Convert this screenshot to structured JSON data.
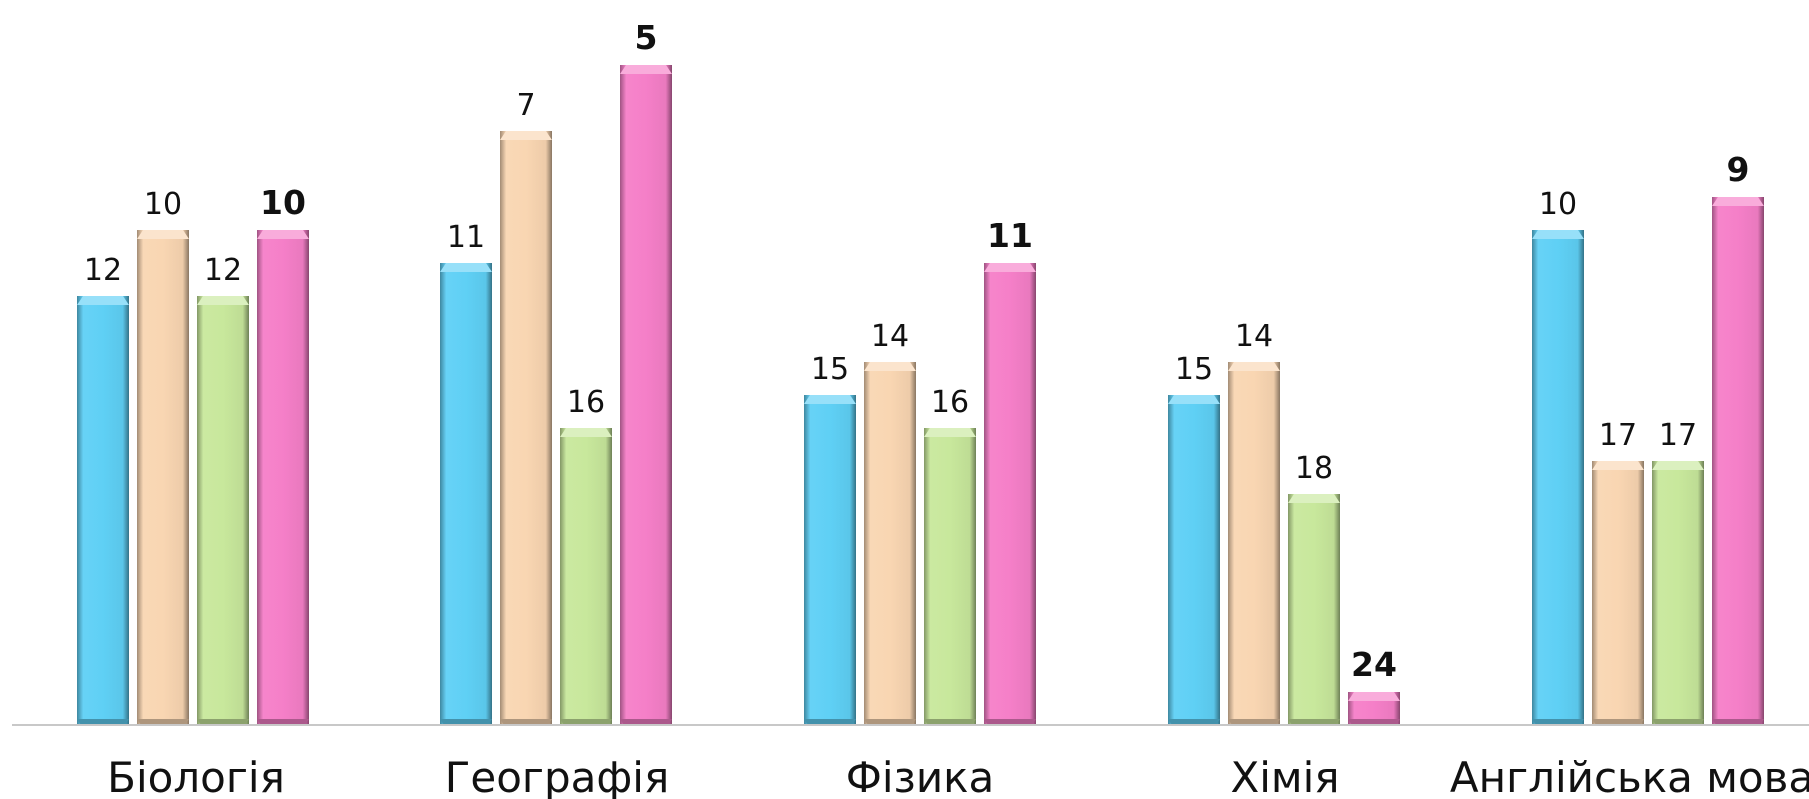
{
  "chart_data": {
    "type": "bar",
    "categories": [
      "Біологія",
      "Географія",
      "Фізика",
      "Хімія",
      "Англійська мова"
    ],
    "series": [
      {
        "color": "#5fd0f5",
        "values": [
          12,
          11,
          15,
          15,
          10
        ],
        "labels": [
          "12",
          "11",
          "15",
          "15",
          "10"
        ]
      },
      {
        "color": "#f9d6b2",
        "values": [
          10,
          7,
          14,
          14,
          17
        ],
        "labels": [
          "10",
          "7",
          "14",
          "14",
          "17"
        ]
      },
      {
        "color": "#c8e89c",
        "values": [
          12,
          16,
          16,
          18,
          17
        ],
        "labels": [
          "12",
          "16",
          "16",
          "18",
          "17"
        ]
      },
      {
        "color": "#f57fc8",
        "values": [
          10,
          5,
          11,
          24,
          9
        ],
        "labels": [
          "10",
          "5",
          "11",
          "24",
          "9"
        ],
        "bold_labels": true
      }
    ],
    "value_axis_reversed": true,
    "value_axis_max": 25,
    "title": "",
    "xlabel": "",
    "ylabel": "",
    "grid": false,
    "legend": "none"
  }
}
